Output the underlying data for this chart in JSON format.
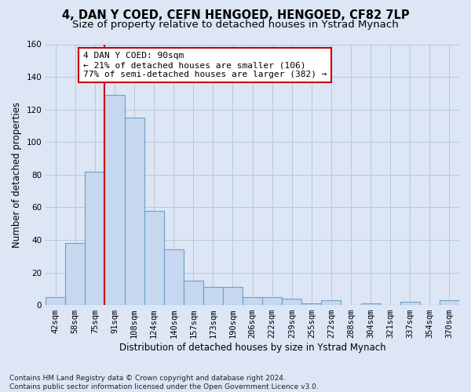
{
  "title": "4, DAN Y COED, CEFN HENGOED, HENGOED, CF82 7LP",
  "subtitle": "Size of property relative to detached houses in Ystrad Mynach",
  "xlabel": "Distribution of detached houses by size in Ystrad Mynach",
  "ylabel": "Number of detached properties",
  "footnote": "Contains HM Land Registry data © Crown copyright and database right 2024.\nContains public sector information licensed under the Open Government Licence v3.0.",
  "bar_labels": [
    "42sqm",
    "58sqm",
    "75sqm",
    "91sqm",
    "108sqm",
    "124sqm",
    "140sqm",
    "157sqm",
    "173sqm",
    "190sqm",
    "206sqm",
    "222sqm",
    "239sqm",
    "255sqm",
    "272sqm",
    "288sqm",
    "304sqm",
    "321sqm",
    "337sqm",
    "354sqm",
    "370sqm"
  ],
  "bar_heights": [
    5,
    38,
    82,
    129,
    115,
    58,
    34,
    15,
    11,
    11,
    5,
    5,
    4,
    1,
    3,
    0,
    1,
    0,
    2,
    0,
    3
  ],
  "bar_color": "#c5d8f0",
  "bar_edge_color": "#6e9fc5",
  "vline_color": "#cc0000",
  "annotation_text": "4 DAN Y COED: 90sqm\n← 21% of detached houses are smaller (106)\n77% of semi-detached houses are larger (382) →",
  "annotation_box_color": "#ffffff",
  "annotation_box_edge": "#cc0000",
  "ylim": [
    0,
    160
  ],
  "yticks": [
    0,
    20,
    40,
    60,
    80,
    100,
    120,
    140,
    160
  ],
  "background_color": "#dce6f5",
  "grid_color": "#b8c8de",
  "title_fontsize": 10.5,
  "subtitle_fontsize": 9.5,
  "label_fontsize": 8.5,
  "tick_fontsize": 7.5,
  "footnote_fontsize": 6.5
}
